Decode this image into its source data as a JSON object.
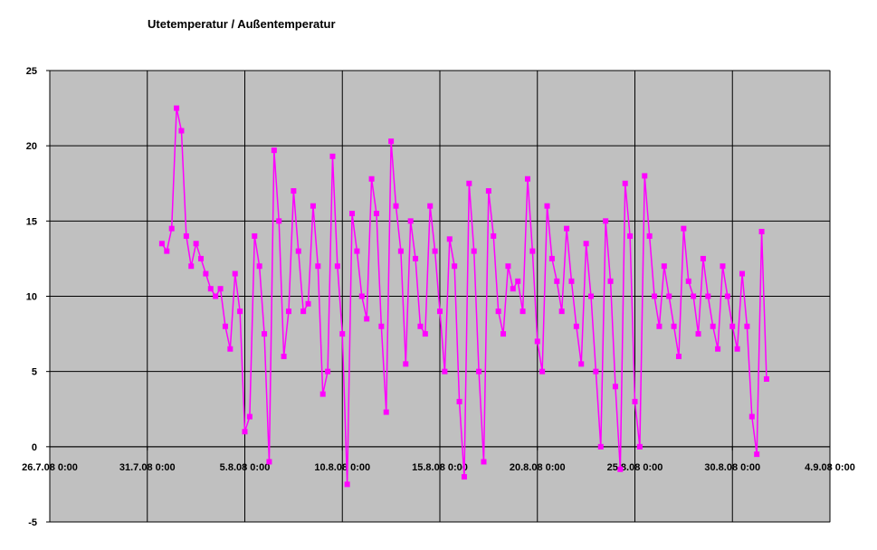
{
  "chart_data": {
    "type": "line",
    "title": "Utetemperatur / Außentemperatur",
    "xlim": [
      "2008-07-26T00:00",
      "2008-09-04T00:00"
    ],
    "xticks": [
      {
        "value": "2008-07-26T00:00",
        "label": "26.7.08 0:00"
      },
      {
        "value": "2008-07-31T00:00",
        "label": "31.7.08 0:00"
      },
      {
        "value": "2008-08-05T00:00",
        "label": "5.8.08 0:00"
      },
      {
        "value": "2008-08-10T00:00",
        "label": "10.8.08 0:00"
      },
      {
        "value": "2008-08-15T00:00",
        "label": "15.8.08 0:00"
      },
      {
        "value": "2008-08-20T00:00",
        "label": "20.8.08 0:00"
      },
      {
        "value": "2008-08-25T00:00",
        "label": "25.8.08 0:00"
      },
      {
        "value": "2008-08-30T00:00",
        "label": "30.8.08 0:00"
      },
      {
        "value": "2008-09-04T00:00",
        "label": "4.9.08 0:00"
      }
    ],
    "ylim": [
      -5,
      25
    ],
    "yticks": [
      -5,
      0,
      5,
      10,
      15,
      20,
      25
    ],
    "grid": true,
    "series": [
      {
        "color": "#ff00ff",
        "x": [
          "2008-07-31T18:00",
          "2008-08-01T00:00",
          "2008-08-01T06:00",
          "2008-08-01T12:00",
          "2008-08-01T18:00",
          "2008-08-02T00:00",
          "2008-08-02T06:00",
          "2008-08-02T12:00",
          "2008-08-02T18:00",
          "2008-08-03T00:00",
          "2008-08-03T06:00",
          "2008-08-03T12:00",
          "2008-08-03T18:00",
          "2008-08-04T00:00",
          "2008-08-04T06:00",
          "2008-08-04T12:00",
          "2008-08-04T18:00",
          "2008-08-05T00:00",
          "2008-08-05T06:00",
          "2008-08-05T12:00",
          "2008-08-05T18:00",
          "2008-08-06T00:00",
          "2008-08-06T06:00",
          "2008-08-06T12:00",
          "2008-08-06T18:00",
          "2008-08-07T00:00",
          "2008-08-07T06:00",
          "2008-08-07T12:00",
          "2008-08-07T18:00",
          "2008-08-08T00:00",
          "2008-08-08T06:00",
          "2008-08-08T12:00",
          "2008-08-08T18:00",
          "2008-08-09T00:00",
          "2008-08-09T06:00",
          "2008-08-09T12:00",
          "2008-08-09T18:00",
          "2008-08-10T00:00",
          "2008-08-10T06:00",
          "2008-08-10T12:00",
          "2008-08-10T18:00",
          "2008-08-11T00:00",
          "2008-08-11T06:00",
          "2008-08-11T12:00",
          "2008-08-11T18:00",
          "2008-08-12T00:00",
          "2008-08-12T06:00",
          "2008-08-12T12:00",
          "2008-08-12T18:00",
          "2008-08-13T00:00",
          "2008-08-13T06:00",
          "2008-08-13T12:00",
          "2008-08-13T18:00",
          "2008-08-14T00:00",
          "2008-08-14T06:00",
          "2008-08-14T12:00",
          "2008-08-14T18:00",
          "2008-08-15T00:00",
          "2008-08-15T06:00",
          "2008-08-15T12:00",
          "2008-08-15T18:00",
          "2008-08-16T00:00",
          "2008-08-16T06:00",
          "2008-08-16T12:00",
          "2008-08-16T18:00",
          "2008-08-17T00:00",
          "2008-08-17T06:00",
          "2008-08-17T12:00",
          "2008-08-17T18:00",
          "2008-08-18T00:00",
          "2008-08-18T06:00",
          "2008-08-18T12:00",
          "2008-08-18T18:00",
          "2008-08-19T00:00",
          "2008-08-19T06:00",
          "2008-08-19T12:00",
          "2008-08-19T18:00",
          "2008-08-20T00:00",
          "2008-08-20T06:00",
          "2008-08-20T12:00",
          "2008-08-20T18:00",
          "2008-08-21T00:00",
          "2008-08-21T06:00",
          "2008-08-21T12:00",
          "2008-08-21T18:00",
          "2008-08-22T00:00",
          "2008-08-22T06:00",
          "2008-08-22T12:00",
          "2008-08-22T18:00",
          "2008-08-23T00:00",
          "2008-08-23T06:00",
          "2008-08-23T12:00",
          "2008-08-23T18:00",
          "2008-08-24T00:00",
          "2008-08-24T06:00",
          "2008-08-24T12:00",
          "2008-08-24T18:00",
          "2008-08-25T00:00",
          "2008-08-25T06:00",
          "2008-08-25T12:00",
          "2008-08-25T18:00",
          "2008-08-26T00:00",
          "2008-08-26T06:00",
          "2008-08-26T12:00",
          "2008-08-26T18:00",
          "2008-08-27T00:00",
          "2008-08-27T06:00",
          "2008-08-27T12:00",
          "2008-08-27T18:00",
          "2008-08-28T00:00",
          "2008-08-28T06:00",
          "2008-08-28T12:00",
          "2008-08-28T18:00",
          "2008-08-29T00:00",
          "2008-08-29T06:00",
          "2008-08-29T12:00",
          "2008-08-29T18:00",
          "2008-08-30T00:00",
          "2008-08-30T06:00",
          "2008-08-30T12:00",
          "2008-08-30T18:00",
          "2008-08-31T00:00",
          "2008-08-31T06:00",
          "2008-08-31T12:00",
          "2008-08-31T18:00"
        ],
        "values": [
          13.5,
          13,
          14.5,
          22.5,
          21,
          14,
          12,
          13.5,
          12.5,
          11.5,
          10.5,
          10,
          10.5,
          8,
          6.5,
          11.5,
          9,
          1,
          2,
          14,
          12,
          7.5,
          -1,
          19.7,
          15,
          6,
          9,
          17,
          13,
          9,
          9.5,
          16,
          12,
          3.5,
          5,
          19.3,
          12,
          7.5,
          -2.5,
          15.5,
          13,
          10,
          8.5,
          17.8,
          15.5,
          8,
          2.3,
          20.3,
          16,
          13,
          5.5,
          15,
          12.5,
          8,
          7.5,
          16,
          13,
          9,
          5,
          13.8,
          12,
          3,
          -2,
          17.5,
          13,
          5,
          -1,
          17,
          14,
          9,
          7.5,
          12,
          10.5,
          11,
          9,
          17.8,
          13,
          7,
          5,
          16,
          12.5,
          11,
          9,
          14.5,
          11,
          8,
          5.5,
          13.5,
          10,
          5,
          0,
          15,
          11,
          4,
          -1.5,
          17.5,
          14,
          3,
          0,
          18,
          14,
          10,
          8,
          12,
          10,
          8,
          6,
          14.5,
          11,
          10,
          7.5,
          12.5,
          10,
          8,
          6.5,
          12,
          10,
          8,
          6.5,
          11.5,
          8,
          2,
          -0.5,
          14.3,
          4.5
        ]
      }
    ]
  }
}
